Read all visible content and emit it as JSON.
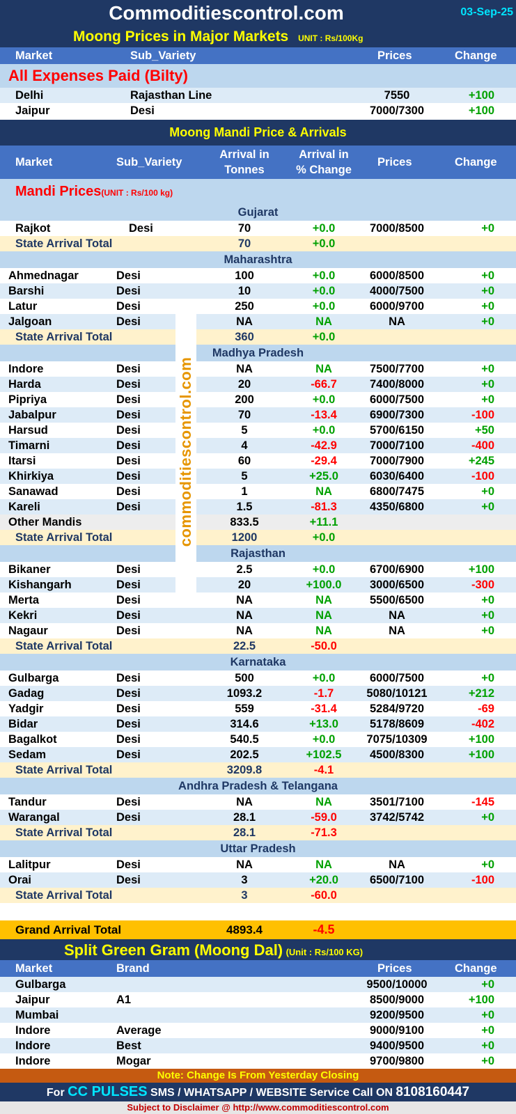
{
  "header": {
    "site": "Commoditiescontrol.com",
    "date": "03-Sep-25"
  },
  "top": {
    "title": "Moong Prices in Major Markets",
    "unit": "UNIT : Rs/100Kg",
    "cols": [
      "Market",
      "Sub_Variety",
      "Prices",
      "Change"
    ],
    "section": "All Expenses Paid (Bilty)",
    "rows": [
      {
        "market": "Delhi",
        "variety": "Rajasthan Line",
        "price": "7550",
        "change": "+100"
      },
      {
        "market": "Jaipur",
        "variety": "Desi",
        "price": "7000/7300",
        "change": "+100"
      }
    ]
  },
  "mandi": {
    "title": "Moong Mandi Price & Arrivals",
    "cols": [
      "Market",
      "Sub_Variety",
      "Arrival in",
      "Tonnes",
      "Arrival  in",
      "% Change",
      "Prices",
      "Change"
    ],
    "section": "Mandi Prices",
    "unit": "(UNIT : Rs/100 kg)",
    "states": [
      {
        "name": "Gujarat",
        "rows": [
          {
            "m": "Rajkot",
            "v": "Desi",
            "a": "70",
            "p": "+0.0",
            "pr": "7000/8500",
            "c": "+0"
          }
        ],
        "total": {
          "label": "State Arrival Total",
          "a": "70",
          "p": "+0.0"
        }
      },
      {
        "name": "Maharashtra",
        "rows": [
          {
            "m": "Ahmednagar",
            "v": "Desi",
            "a": "100",
            "p": "+0.0",
            "pr": "6000/8500",
            "c": "+0"
          },
          {
            "m": "Barshi",
            "v": "Desi",
            "a": "10",
            "p": "+0.0",
            "pr": "4000/7500",
            "c": "+0"
          },
          {
            "m": "Latur",
            "v": "Desi",
            "a": "250",
            "p": "+0.0",
            "pr": "6000/9700",
            "c": "+0"
          },
          {
            "m": "Jalgoan",
            "v": "Desi",
            "a": "NA",
            "p": "NA",
            "pr": "NA",
            "c": "+0"
          }
        ],
        "total": {
          "label": "State Arrival Total",
          "a": "360",
          "p": "+0.0"
        }
      },
      {
        "name": "Madhya Pradesh",
        "rows": [
          {
            "m": "Indore",
            "v": "Desi",
            "a": "NA",
            "p": "NA",
            "pr": "7500/7700",
            "c": "+0"
          },
          {
            "m": "Harda",
            "v": "Desi",
            "a": "20",
            "p": "-66.7",
            "pr": "7400/8000",
            "c": "+0"
          },
          {
            "m": "Pipriya",
            "v": "Desi",
            "a": "200",
            "p": "+0.0",
            "pr": "6000/7500",
            "c": "+0"
          },
          {
            "m": "Jabalpur",
            "v": "Desi",
            "a": "70",
            "p": "-13.4",
            "pr": "6900/7300",
            "c": "-100"
          },
          {
            "m": "Harsud",
            "v": "Desi",
            "a": "5",
            "p": "+0.0",
            "pr": "5700/6150",
            "c": "+50"
          },
          {
            "m": "Timarni",
            "v": "Desi",
            "a": "4",
            "p": "-42.9",
            "pr": "7000/7100",
            "c": "-400"
          },
          {
            "m": "Itarsi",
            "v": "Desi",
            "a": "60",
            "p": "-29.4",
            "pr": "7000/7900",
            "c": "+245"
          },
          {
            "m": "Khirkiya",
            "v": "Desi",
            "a": "5",
            "p": "+25.0",
            "pr": "6030/6400",
            "c": "-100"
          },
          {
            "m": "Sanawad",
            "v": "Desi",
            "a": "1",
            "p": "NA",
            "pr": "6800/7475",
            "c": "+0"
          },
          {
            "m": "Kareli",
            "v": "Desi",
            "a": "1.5",
            "p": "-81.3",
            "pr": "4350/6800",
            "c": "+0"
          },
          {
            "m": "Other Mandis",
            "v": "",
            "a": "833.5",
            "p": "+11.1",
            "pr": "",
            "c": "",
            "other": true
          }
        ],
        "total": {
          "label": "State Arrival Total",
          "a": "1200",
          "p": "+0.0"
        }
      },
      {
        "name": "Rajasthan",
        "rows": [
          {
            "m": "Bikaner",
            "v": "Desi",
            "a": "2.5",
            "p": "+0.0",
            "pr": "6700/6900",
            "c": "+100"
          },
          {
            "m": "Kishangarh",
            "v": "Desi",
            "a": "20",
            "p": "+100.0",
            "pr": "3000/6500",
            "c": "-300"
          },
          {
            "m": "Merta",
            "v": "Desi",
            "a": "NA",
            "p": "NA",
            "pr": "5500/6500",
            "c": "+0"
          },
          {
            "m": "Kekri",
            "v": "Desi",
            "a": "NA",
            "p": "NA",
            "pr": "NA",
            "c": "+0"
          },
          {
            "m": "Nagaur",
            "v": "Desi",
            "a": "NA",
            "p": "NA",
            "pr": "NA",
            "c": "+0"
          }
        ],
        "total": {
          "label": "State Arrival Total",
          "a": "22.5",
          "p": "-50.0"
        }
      },
      {
        "name": "Karnataka",
        "rows": [
          {
            "m": "Gulbarga",
            "v": "Desi",
            "a": "500",
            "p": "+0.0",
            "pr": "6000/7500",
            "c": "+0"
          },
          {
            "m": "Gadag",
            "v": "Desi",
            "a": "1093.2",
            "p": "-1.7",
            "pr": "5080/10121",
            "c": "+212"
          },
          {
            "m": "Yadgir",
            "v": "Desi",
            "a": "559",
            "p": "-31.4",
            "pr": "5284/9720",
            "c": "-69"
          },
          {
            "m": "Bidar",
            "v": "Desi",
            "a": "314.6",
            "p": "+13.0",
            "pr": "5178/8609",
            "c": "-402"
          },
          {
            "m": "Bagalkot",
            "v": "Desi",
            "a": "540.5",
            "p": "+0.0",
            "pr": "7075/10309",
            "c": "+100"
          },
          {
            "m": "Sedam",
            "v": "Desi",
            "a": "202.5",
            "p": "+102.5",
            "pr": "4500/8300",
            "c": "+100"
          }
        ],
        "total": {
          "label": "State Arrival Total",
          "a": "3209.8",
          "p": "-4.1"
        }
      },
      {
        "name": "Andhra Pradesh & Telangana",
        "rows": [
          {
            "m": "Tandur",
            "v": "Desi",
            "a": "NA",
            "p": "NA",
            "pr": "3501/7100",
            "c": "-145"
          },
          {
            "m": "Warangal",
            "v": "Desi",
            "a": "28.1",
            "p": "-59.0",
            "pr": "3742/5742",
            "c": "+0"
          }
        ],
        "total": {
          "label": "State Arrival Total",
          "a": "28.1",
          "p": "-71.3"
        }
      },
      {
        "name": "Uttar Pradesh",
        "rows": [
          {
            "m": "Lalitpur",
            "v": "Desi",
            "a": "NA",
            "p": "NA",
            "pr": "NA",
            "c": "+0"
          },
          {
            "m": "Orai",
            "v": "Desi",
            "a": "3",
            "p": "+20.0",
            "pr": "6500/7100",
            "c": "-100"
          }
        ],
        "total": {
          "label": "State Arrival Total",
          "a": "3",
          "p": "-60.0"
        }
      }
    ],
    "grand": {
      "label": "Grand Arrival Total",
      "a": "4893.4",
      "p": "-4.5"
    }
  },
  "dal": {
    "title": "Split Green Gram (Moong Dal)",
    "unit": "(Unit : Rs/100 KG)",
    "cols": [
      "Market",
      "Brand",
      "Prices",
      "Change"
    ],
    "rows": [
      {
        "m": "Gulbarga",
        "b": "",
        "pr": "9500/10000",
        "c": "+0"
      },
      {
        "m": "Jaipur",
        "b": "A1",
        "pr": "8500/9000",
        "c": "+100"
      },
      {
        "m": "Mumbai",
        "b": "",
        "pr": "9200/9500",
        "c": "+0"
      },
      {
        "m": "Indore",
        "b": "Average",
        "pr": "9000/9100",
        "c": "+0"
      },
      {
        "m": "Indore",
        "b": "Best",
        "pr": "9400/9500",
        "c": "+0"
      },
      {
        "m": "Indore",
        "b": "Mogar",
        "pr": "9700/9800",
        "c": "+0"
      }
    ]
  },
  "footer": {
    "note": "Note: Change Is From Yesterday Closing",
    "for": "For ",
    "cc": "CC PULSES",
    "service": " SMS / WHATSAPP / WEBSITE Service Call  ON ",
    "phone": "8108160447",
    "disclaimer": "Subject to Disclaimer @  http://www.commoditiescontrol.com"
  },
  "watermark": "commoditiescontrol.com",
  "colors": {
    "header": "#1F3864",
    "col_header": "#4472C4",
    "section": "#BDD7EE",
    "light_row": "#DDEBF7",
    "total_row": "#FFF2CC",
    "grand": "#FFC000",
    "note": "#C55A11",
    "positive": "#00A000",
    "negative": "#FF0000",
    "title_yellow": "#FFFF00"
  }
}
